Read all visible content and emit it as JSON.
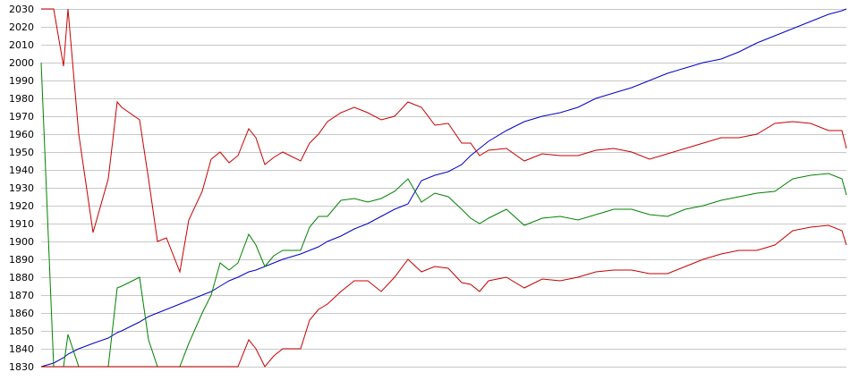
{
  "chart_data": {
    "type": "line",
    "title": "",
    "xlabel": "",
    "ylabel": "",
    "ylim": [
      1830,
      2030
    ],
    "yticks": [
      2030,
      2020,
      2010,
      2000,
      1990,
      1980,
      1970,
      1960,
      1950,
      1940,
      1930,
      1920,
      1910,
      1900,
      1890,
      1880,
      1870,
      1860,
      1850,
      1840,
      1830
    ],
    "grid": true,
    "legend": "none",
    "x": [
      0,
      14,
      25,
      30,
      42,
      58,
      75,
      85,
      90,
      110,
      120,
      130,
      140,
      155,
      165,
      180,
      190,
      200,
      210,
      220,
      232,
      240,
      250,
      260,
      270,
      290,
      300,
      310,
      320,
      335,
      350,
      365,
      380,
      395,
      410,
      425,
      440,
      455,
      470,
      480,
      490,
      500,
      520,
      540,
      560,
      580,
      600,
      620,
      640,
      660,
      680,
      700,
      720,
      740,
      760,
      780,
      800,
      820,
      840,
      860,
      880,
      895,
      900
    ],
    "series": [
      {
        "color": "#0000c8",
        "values": [
          1830,
          1832,
          1835,
          1837,
          1840,
          1843,
          1846,
          1849,
          1850,
          1855,
          1858,
          1860,
          1862,
          1865,
          1867,
          1870,
          1872,
          1875,
          1878,
          1880,
          1883,
          1884,
          1886,
          1888,
          1890,
          1893,
          1895,
          1897,
          1900,
          1903,
          1907,
          1910,
          1914,
          1918,
          1921,
          1934,
          1937,
          1939,
          1943,
          1948,
          1952,
          1956,
          1962,
          1967,
          1970,
          1972,
          1975,
          1980,
          1983,
          1986,
          1990,
          1994,
          1997,
          2000,
          2002,
          2006,
          2011,
          2015,
          2019,
          2023,
          2027,
          2029,
          2030
        ]
      },
      {
        "color": "#c80000",
        "values": [
          2030,
          2030,
          1998,
          2030,
          1960,
          1905,
          1935,
          1978,
          1975,
          1968,
          1935,
          1900,
          1902,
          1883,
          1912,
          1928,
          1946,
          1950,
          1944,
          1948,
          1963,
          1958,
          1943,
          1947,
          1950,
          1945,
          1955,
          1960,
          1967,
          1972,
          1975,
          1972,
          1968,
          1970,
          1978,
          1975,
          1965,
          1966,
          1955,
          1955,
          1948,
          1951,
          1952,
          1945,
          1949,
          1948,
          1948,
          1951,
          1952,
          1950,
          1946,
          1949,
          1952,
          1955,
          1958,
          1958,
          1960,
          1966,
          1967,
          1966,
          1962,
          1962,
          1952
        ]
      },
      {
        "color": "#008200",
        "values": [
          2000,
          1830,
          1830,
          1848,
          1830,
          1830,
          1830,
          1874,
          1875,
          1880,
          1845,
          1830,
          1830,
          1830,
          1843,
          1860,
          1870,
          1888,
          1884,
          1888,
          1904,
          1898,
          1886,
          1892,
          1895,
          1895,
          1908,
          1914,
          1914,
          1923,
          1924,
          1922,
          1924,
          1928,
          1935,
          1922,
          1927,
          1925,
          1918,
          1913,
          1910,
          1913,
          1918,
          1909,
          1913,
          1914,
          1912,
          1915,
          1918,
          1918,
          1915,
          1914,
          1918,
          1920,
          1923,
          1925,
          1927,
          1928,
          1935,
          1937,
          1938,
          1935,
          1926
        ]
      },
      {
        "color": "#c80000",
        "values": [
          1830,
          1830,
          1830,
          1830,
          1830,
          1830,
          1830,
          1830,
          1830,
          1830,
          1830,
          1830,
          1830,
          1830,
          1830,
          1830,
          1830,
          1830,
          1830,
          1830,
          1845,
          1840,
          1830,
          1836,
          1840,
          1840,
          1856,
          1862,
          1865,
          1872,
          1878,
          1878,
          1872,
          1880,
          1890,
          1883,
          1886,
          1885,
          1877,
          1876,
          1872,
          1878,
          1880,
          1874,
          1879,
          1878,
          1880,
          1883,
          1884,
          1884,
          1882,
          1882,
          1886,
          1890,
          1893,
          1895,
          1895,
          1898,
          1906,
          1908,
          1909,
          1906,
          1898
        ]
      }
    ]
  }
}
